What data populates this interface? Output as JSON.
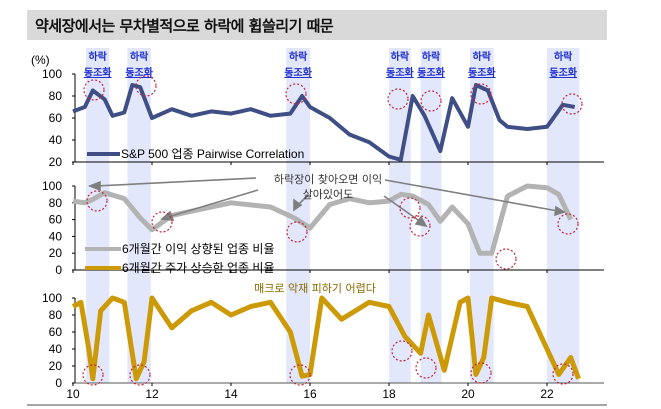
{
  "header": {
    "title": "약세장에서는 무차별적으로 하락에 휩쓸리기 때문"
  },
  "colors": {
    "correlation_line": "#3f4f86",
    "earnings_line": "#b3b3b3",
    "price_line": "#cc9a06",
    "band": "#e3e7fb",
    "circle": "#c0283a",
    "band_label": "#1f2fd0",
    "arrow": "#7f7f7f"
  },
  "band_label": {
    "line1": "하락",
    "line2": "동조화"
  },
  "annotations": {
    "middle_line1": "하락장이 찾아오면 이익",
    "middle_line2": "살아있어도",
    "bottom": "매크로 악재 피하기 어렵다"
  },
  "chart_data": [
    {
      "type": "line",
      "title": "S&P 500 업종 Pairwise Correlation",
      "ylabel": "(%)",
      "ylim": [
        20,
        100
      ],
      "yticks": [
        "100",
        "80",
        "60",
        "40",
        "20"
      ],
      "legend": [
        "S&P 500 업종 Pairwise Correlation"
      ],
      "x": [
        2010.0,
        2010.3,
        2010.5,
        2010.8,
        2011.0,
        2011.3,
        2011.5,
        2011.7,
        2012.0,
        2012.5,
        2013.0,
        2013.5,
        2014.0,
        2014.5,
        2015.0,
        2015.5,
        2015.8,
        2016.0,
        2016.5,
        2017.0,
        2017.5,
        2018.0,
        2018.3,
        2018.6,
        2018.9,
        2019.3,
        2019.6,
        2020.0,
        2020.2,
        2020.5,
        2020.8,
        2021.0,
        2021.5,
        2022.0,
        2022.4,
        2022.7
      ],
      "series": [
        {
          "name": "S&P 500 업종 Pairwise Correlation",
          "values": [
            66,
            70,
            85,
            77,
            62,
            65,
            90,
            88,
            60,
            68,
            62,
            66,
            64,
            68,
            62,
            64,
            80,
            70,
            60,
            45,
            38,
            25,
            22,
            80,
            62,
            30,
            78,
            52,
            90,
            85,
            58,
            52,
            50,
            52,
            72,
            70
          ]
        }
      ]
    },
    {
      "type": "line",
      "title": "",
      "ylim": [
        0,
        100
      ],
      "yticks": [
        "100",
        "80",
        "60",
        "40",
        "20",
        "0"
      ],
      "legend": [
        "6개월간 이익 상향된 업종 비율",
        "6개월간 주가 상승한 업종 비율"
      ],
      "x": [
        2010.0,
        2010.3,
        2010.5,
        2010.8,
        2011.3,
        2011.7,
        2012.0,
        2012.5,
        2013.0,
        2014.0,
        2015.0,
        2015.6,
        2016.0,
        2016.5,
        2017.0,
        2017.5,
        2018.0,
        2018.3,
        2018.6,
        2019.0,
        2019.3,
        2019.6,
        2020.0,
        2020.3,
        2020.6,
        2021.0,
        2021.5,
        2022.0,
        2022.3,
        2022.6
      ],
      "series": [
        {
          "name": "6개월간 이익 상향된 업종 비율",
          "values": [
            82,
            80,
            84,
            92,
            85,
            62,
            48,
            65,
            70,
            80,
            75,
            62,
            50,
            78,
            85,
            80,
            82,
            90,
            88,
            78,
            58,
            75,
            55,
            20,
            20,
            88,
            100,
            98,
            90,
            60
          ]
        }
      ]
    },
    {
      "type": "line",
      "title": "",
      "ylim": [
        0,
        100
      ],
      "yticks": [
        "100",
        "80",
        "60",
        "40",
        "20",
        "0"
      ],
      "xticks": [
        "10",
        "12",
        "14",
        "16",
        "18",
        "20",
        "22"
      ],
      "x": [
        2010.0,
        2010.2,
        2010.4,
        2010.5,
        2010.7,
        2011.0,
        2011.3,
        2011.6,
        2011.8,
        2012.0,
        2012.5,
        2013.0,
        2013.5,
        2014.0,
        2014.5,
        2015.0,
        2015.5,
        2015.8,
        2016.0,
        2016.3,
        2016.8,
        2017.5,
        2018.0,
        2018.4,
        2018.8,
        2019.0,
        2019.4,
        2019.8,
        2020.0,
        2020.2,
        2020.4,
        2020.6,
        2021.0,
        2021.5,
        2022.0,
        2022.3,
        2022.6,
        2022.8
      ],
      "series": [
        {
          "name": "6개월간 주가 상승한 업종 비율",
          "values": [
            90,
            95,
            40,
            5,
            85,
            100,
            95,
            5,
            25,
            100,
            65,
            85,
            95,
            80,
            90,
            95,
            60,
            8,
            10,
            100,
            75,
            95,
            90,
            55,
            35,
            80,
            15,
            95,
            100,
            10,
            30,
            100,
            95,
            90,
            40,
            10,
            30,
            5
          ]
        }
      ]
    }
  ],
  "bands": [
    {
      "start": 2010.33,
      "end": 2010.92
    },
    {
      "start": 2011.38,
      "end": 2011.97
    },
    {
      "start": 2015.4,
      "end": 2016.0
    },
    {
      "start": 2018.0,
      "end": 2018.55
    },
    {
      "start": 2018.8,
      "end": 2019.33
    },
    {
      "start": 2020.05,
      "end": 2020.65
    },
    {
      "start": 2022.0,
      "end": 2022.82
    }
  ]
}
